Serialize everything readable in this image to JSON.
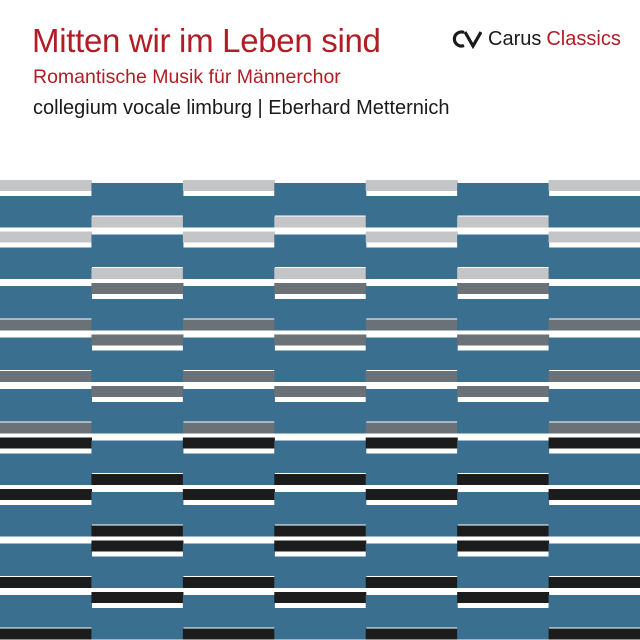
{
  "cover": {
    "title": "Mitten wir im Leben sind",
    "subtitle": "Romantische Musik für Männerchor",
    "performers": "collegium vocale limburg | Eberhard Metternich"
  },
  "label": {
    "brand_word": "Carus",
    "series_word": "Classics"
  },
  "colors": {
    "title": "#b01d24",
    "subtitle": "#b01d24",
    "series_word": "#b01d24",
    "brand_word": "#1a1a1a",
    "light_gray": "#c4c5c7",
    "slate_gray": "#6a7177",
    "steel_blue": "#3a6f90",
    "black": "#1c1c1c",
    "white": "#ffffff"
  },
  "pattern": {
    "columns": 7,
    "bands": [
      {
        "color": "light_gray",
        "phase": "high"
      },
      {
        "color": "light_gray",
        "phase": "high"
      },
      {
        "color": "slate_gray",
        "phase": "low"
      },
      {
        "color": "slate_gray",
        "phase": "low"
      },
      {
        "color": "slate_gray",
        "phase": "low"
      },
      {
        "color": "black",
        "phase": "high"
      },
      {
        "color": "black",
        "phase": "high"
      },
      {
        "color": "black",
        "phase": "low"
      },
      {
        "color": "black",
        "phase": "low"
      }
    ]
  }
}
